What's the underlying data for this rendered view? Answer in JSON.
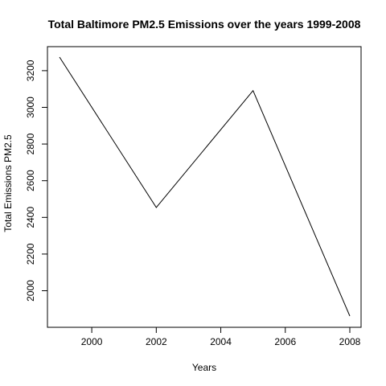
{
  "chart_data": {
    "type": "line",
    "title": "Total Baltimore PM2.5 Emissions over the years 1999-2008",
    "xlabel": "Years",
    "ylabel": "Total Emissions PM2.5",
    "x": [
      1999,
      2002,
      2005,
      2008
    ],
    "series": [
      {
        "values": [
          3274,
          2454,
          3091,
          1862
        ]
      }
    ],
    "xlim": [
      1999,
      2008
    ],
    "ylim": [
      1862,
      3274
    ],
    "x_ticks": [
      2000,
      2002,
      2004,
      2006,
      2008
    ],
    "y_ticks": [
      2000,
      2200,
      2400,
      2600,
      2800,
      3000,
      3200
    ],
    "grid": false,
    "line_color": "#000000"
  }
}
